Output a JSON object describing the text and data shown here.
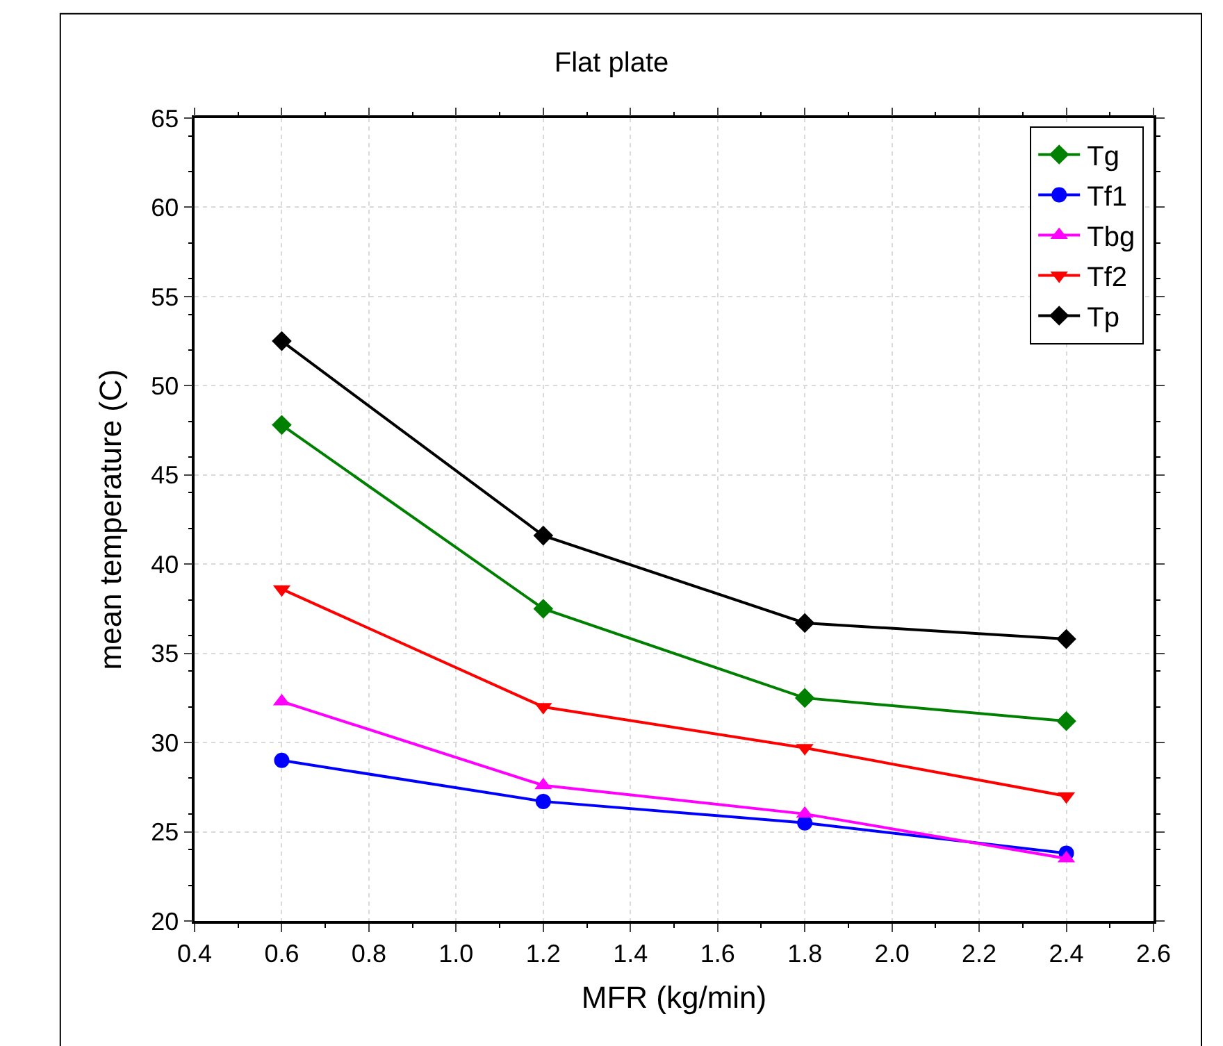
{
  "chart_data": {
    "type": "line",
    "title": "Flat plate",
    "xlabel": "MFR (kg/min)",
    "ylabel": "mean temperature (C)",
    "x": [
      0.6,
      1.2,
      1.8,
      2.4
    ],
    "series": [
      {
        "name": "Tg",
        "color": "#008000",
        "marker": "diamond",
        "values": [
          47.8,
          37.5,
          32.5,
          31.2
        ]
      },
      {
        "name": "Tf1",
        "color": "#0000ff",
        "marker": "circle",
        "values": [
          29.0,
          26.7,
          25.5,
          23.8
        ]
      },
      {
        "name": "Tbg",
        "color": "#ff00ff",
        "marker": "triangle",
        "values": [
          32.3,
          27.6,
          26.0,
          23.5
        ]
      },
      {
        "name": "Tf2",
        "color": "#ff0000",
        "marker": "triangle-down",
        "values": [
          38.6,
          32.0,
          29.7,
          27.0
        ]
      },
      {
        "name": "Tp",
        "color": "#000000",
        "marker": "diamond",
        "values": [
          52.5,
          41.6,
          36.7,
          35.8
        ]
      }
    ],
    "xlim": [
      0.4,
      2.6
    ],
    "xticks": [
      0.4,
      0.6,
      0.8,
      {
        "value": 1.0,
        "label": "1.0"
      },
      1.2,
      1.4,
      1.6,
      1.8,
      {
        "value": 2.0,
        "label": "2.0"
      },
      2.2,
      2.4,
      2.6
    ],
    "ylim": [
      20,
      65
    ],
    "yticks": [
      20,
      25,
      30,
      35,
      40,
      45,
      50,
      55,
      60,
      65
    ],
    "grid": true,
    "legend": "top right",
    "line_style": "solid"
  }
}
